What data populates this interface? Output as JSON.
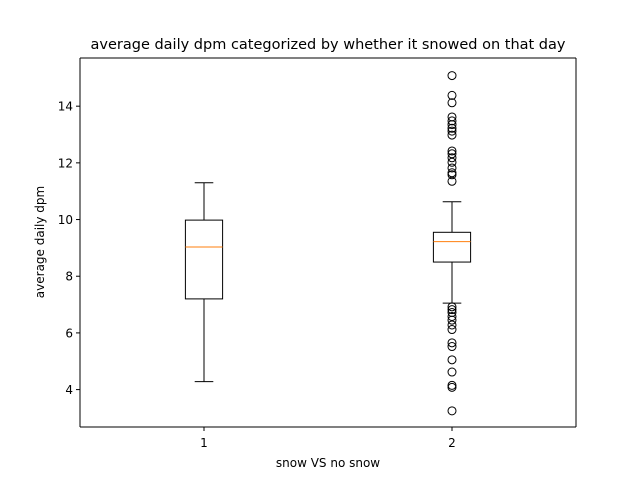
{
  "chart_data": {
    "type": "boxplot",
    "title": "average daily dpm categorized by whether it snowed on that day",
    "xlabel": "snow VS no snow",
    "ylabel": "average daily dpm",
    "categories": [
      "1",
      "2"
    ],
    "ylim": [
      2.68,
      15.7
    ],
    "yticks": [
      4,
      6,
      8,
      10,
      12,
      14
    ],
    "ytick_labels": [
      "4",
      "6",
      "8",
      "10",
      "12",
      "14"
    ],
    "grid": false,
    "colors": {
      "box": "#000000",
      "median": "#ff7f0e",
      "flier": "#000000"
    },
    "boxes": [
      {
        "category": "1",
        "whisker_low": 4.28,
        "q1": 7.2,
        "median": 9.03,
        "q3": 9.98,
        "whisker_high": 11.3,
        "fliers": []
      },
      {
        "category": "2",
        "whisker_low": 7.05,
        "q1": 8.5,
        "median": 9.22,
        "q3": 9.55,
        "whisker_high": 10.63,
        "fliers": [
          15.08,
          14.38,
          14.12,
          13.62,
          13.48,
          13.35,
          13.22,
          13.12,
          12.98,
          12.42,
          12.32,
          12.18,
          12.02,
          11.82,
          11.65,
          11.58,
          11.35,
          6.92,
          6.82,
          6.72,
          6.58,
          6.45,
          6.28,
          6.12,
          5.65,
          5.52,
          5.05,
          4.62,
          4.15,
          4.08,
          3.25
        ]
      }
    ]
  }
}
